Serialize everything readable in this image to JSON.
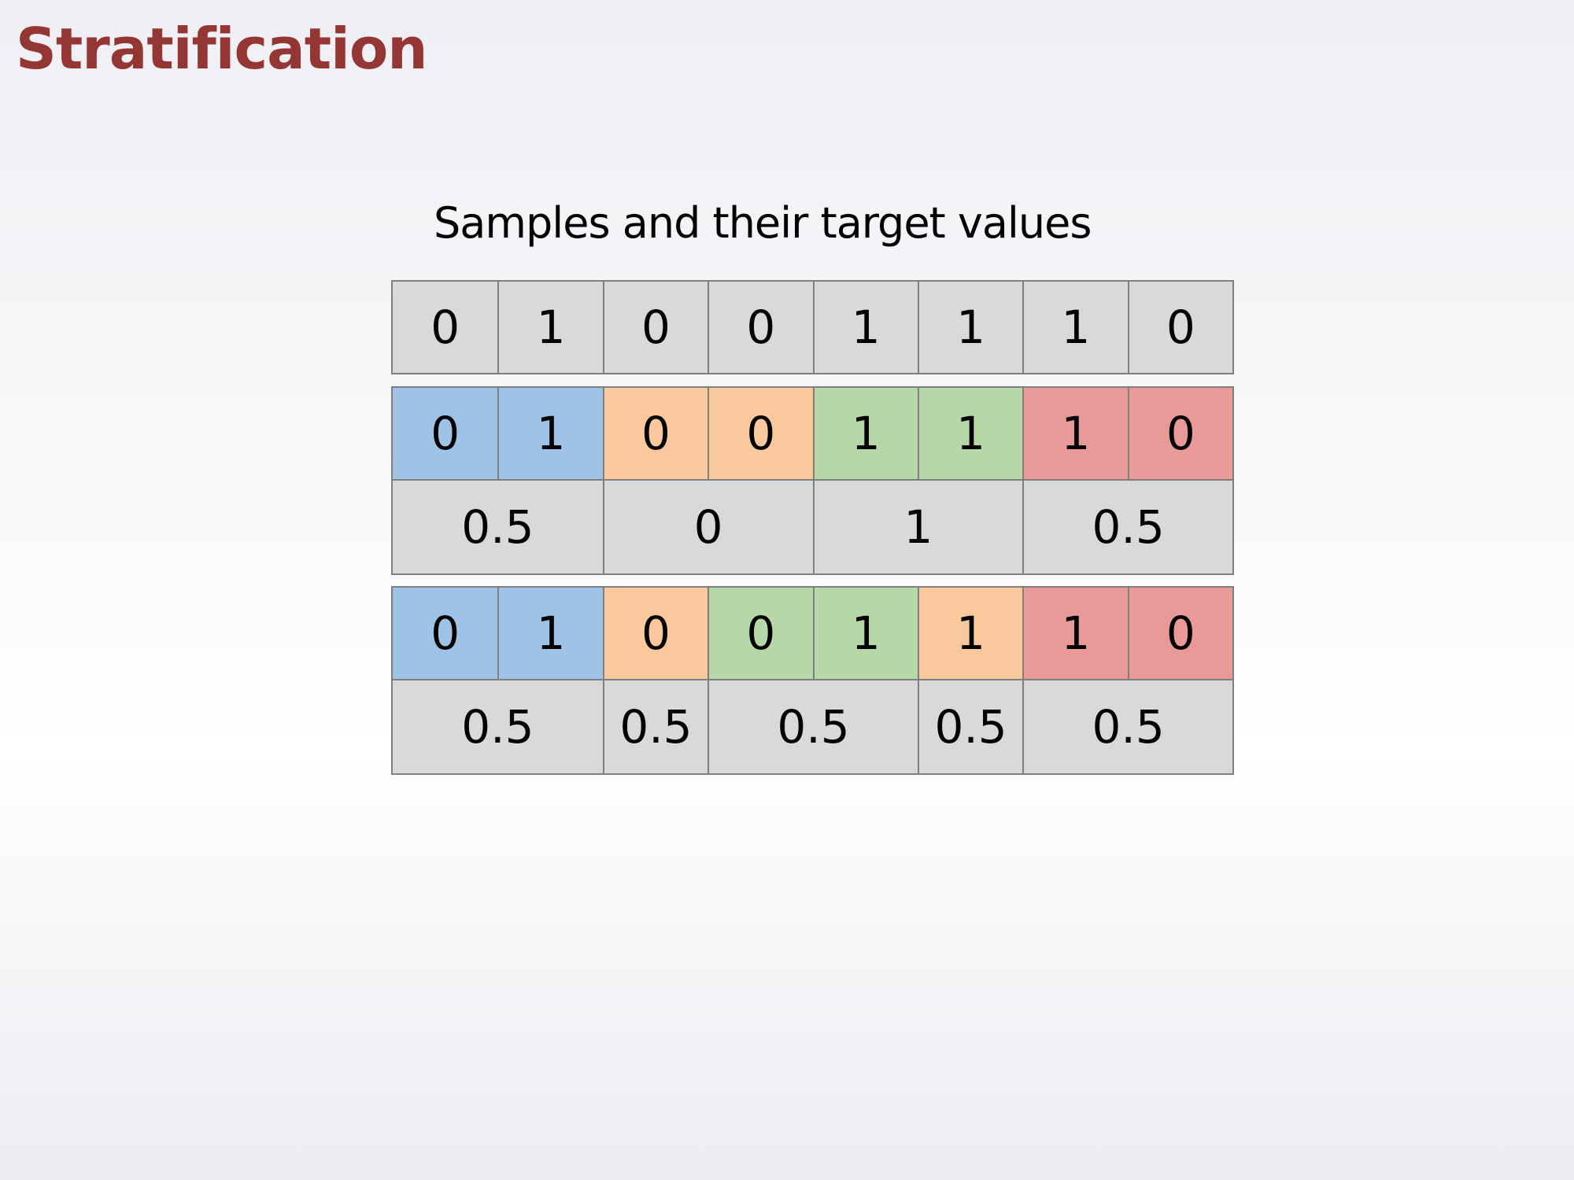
{
  "title": "Stratification",
  "caption": "Samples and their target values",
  "colors": {
    "gray": "#d9d9d9",
    "blue": "#9fc3e7",
    "orange": "#f9c99d",
    "green": "#b6d7a8",
    "red": "#ea9999",
    "border": "#7f7f7f",
    "title": "#943634"
  },
  "samples": [
    "0",
    "1",
    "0",
    "0",
    "1",
    "1",
    "1",
    "0"
  ],
  "scheme_a": {
    "samples": [
      {
        "value": "0",
        "fold": "blue"
      },
      {
        "value": "1",
        "fold": "blue"
      },
      {
        "value": "0",
        "fold": "orange"
      },
      {
        "value": "0",
        "fold": "orange"
      },
      {
        "value": "1",
        "fold": "green"
      },
      {
        "value": "1",
        "fold": "green"
      },
      {
        "value": "1",
        "fold": "red"
      },
      {
        "value": "0",
        "fold": "red"
      }
    ],
    "means": [
      {
        "value": "0.5",
        "span": 2
      },
      {
        "value": "0",
        "span": 2
      },
      {
        "value": "1",
        "span": 2
      },
      {
        "value": "0.5",
        "span": 2
      }
    ]
  },
  "scheme_b": {
    "samples": [
      {
        "value": "0",
        "fold": "blue"
      },
      {
        "value": "1",
        "fold": "blue"
      },
      {
        "value": "0",
        "fold": "orange"
      },
      {
        "value": "0",
        "fold": "green"
      },
      {
        "value": "1",
        "fold": "green"
      },
      {
        "value": "1",
        "fold": "orange"
      },
      {
        "value": "1",
        "fold": "red"
      },
      {
        "value": "0",
        "fold": "red"
      }
    ],
    "means": [
      {
        "value": "0.5",
        "span": 2
      },
      {
        "value": "0.5",
        "span": 1
      },
      {
        "value": "0.5",
        "span": 2
      },
      {
        "value": "0.5",
        "span": 1
      },
      {
        "value": "0.5",
        "span": 2
      }
    ]
  }
}
